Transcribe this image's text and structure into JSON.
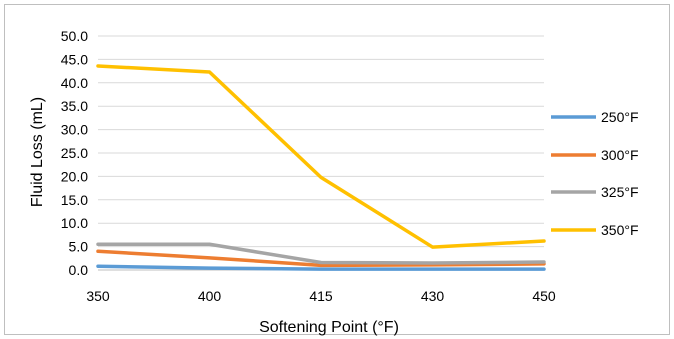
{
  "chart_data": {
    "type": "line",
    "title": "",
    "xlabel": "Softening Point (°F)",
    "ylabel": "Fluid Loss (mL)",
    "categories": [
      "350",
      "400",
      "415",
      "430",
      "450"
    ],
    "ylim": [
      0,
      50
    ],
    "yticks": [
      "0.0",
      "5.0",
      "10.0",
      "15.0",
      "20.0",
      "25.0",
      "30.0",
      "35.0",
      "40.0",
      "45.0",
      "50.0"
    ],
    "grid": "horizontal",
    "legend": "right",
    "series": [
      {
        "name": "250°F",
        "color": "#5b9bd5",
        "values": [
          0.8,
          0.4,
          0.2,
          0.2,
          0.2
        ]
      },
      {
        "name": "300°F",
        "color": "#ed7d31",
        "values": [
          4.0,
          2.6,
          1.0,
          1.1,
          1.3
        ]
      },
      {
        "name": "325°F",
        "color": "#a5a5a5",
        "values": [
          5.5,
          5.5,
          1.6,
          1.5,
          1.7
        ]
      },
      {
        "name": "350°F",
        "color": "#ffc000",
        "values": [
          43.6,
          42.3,
          19.8,
          4.9,
          6.2
        ]
      }
    ]
  }
}
